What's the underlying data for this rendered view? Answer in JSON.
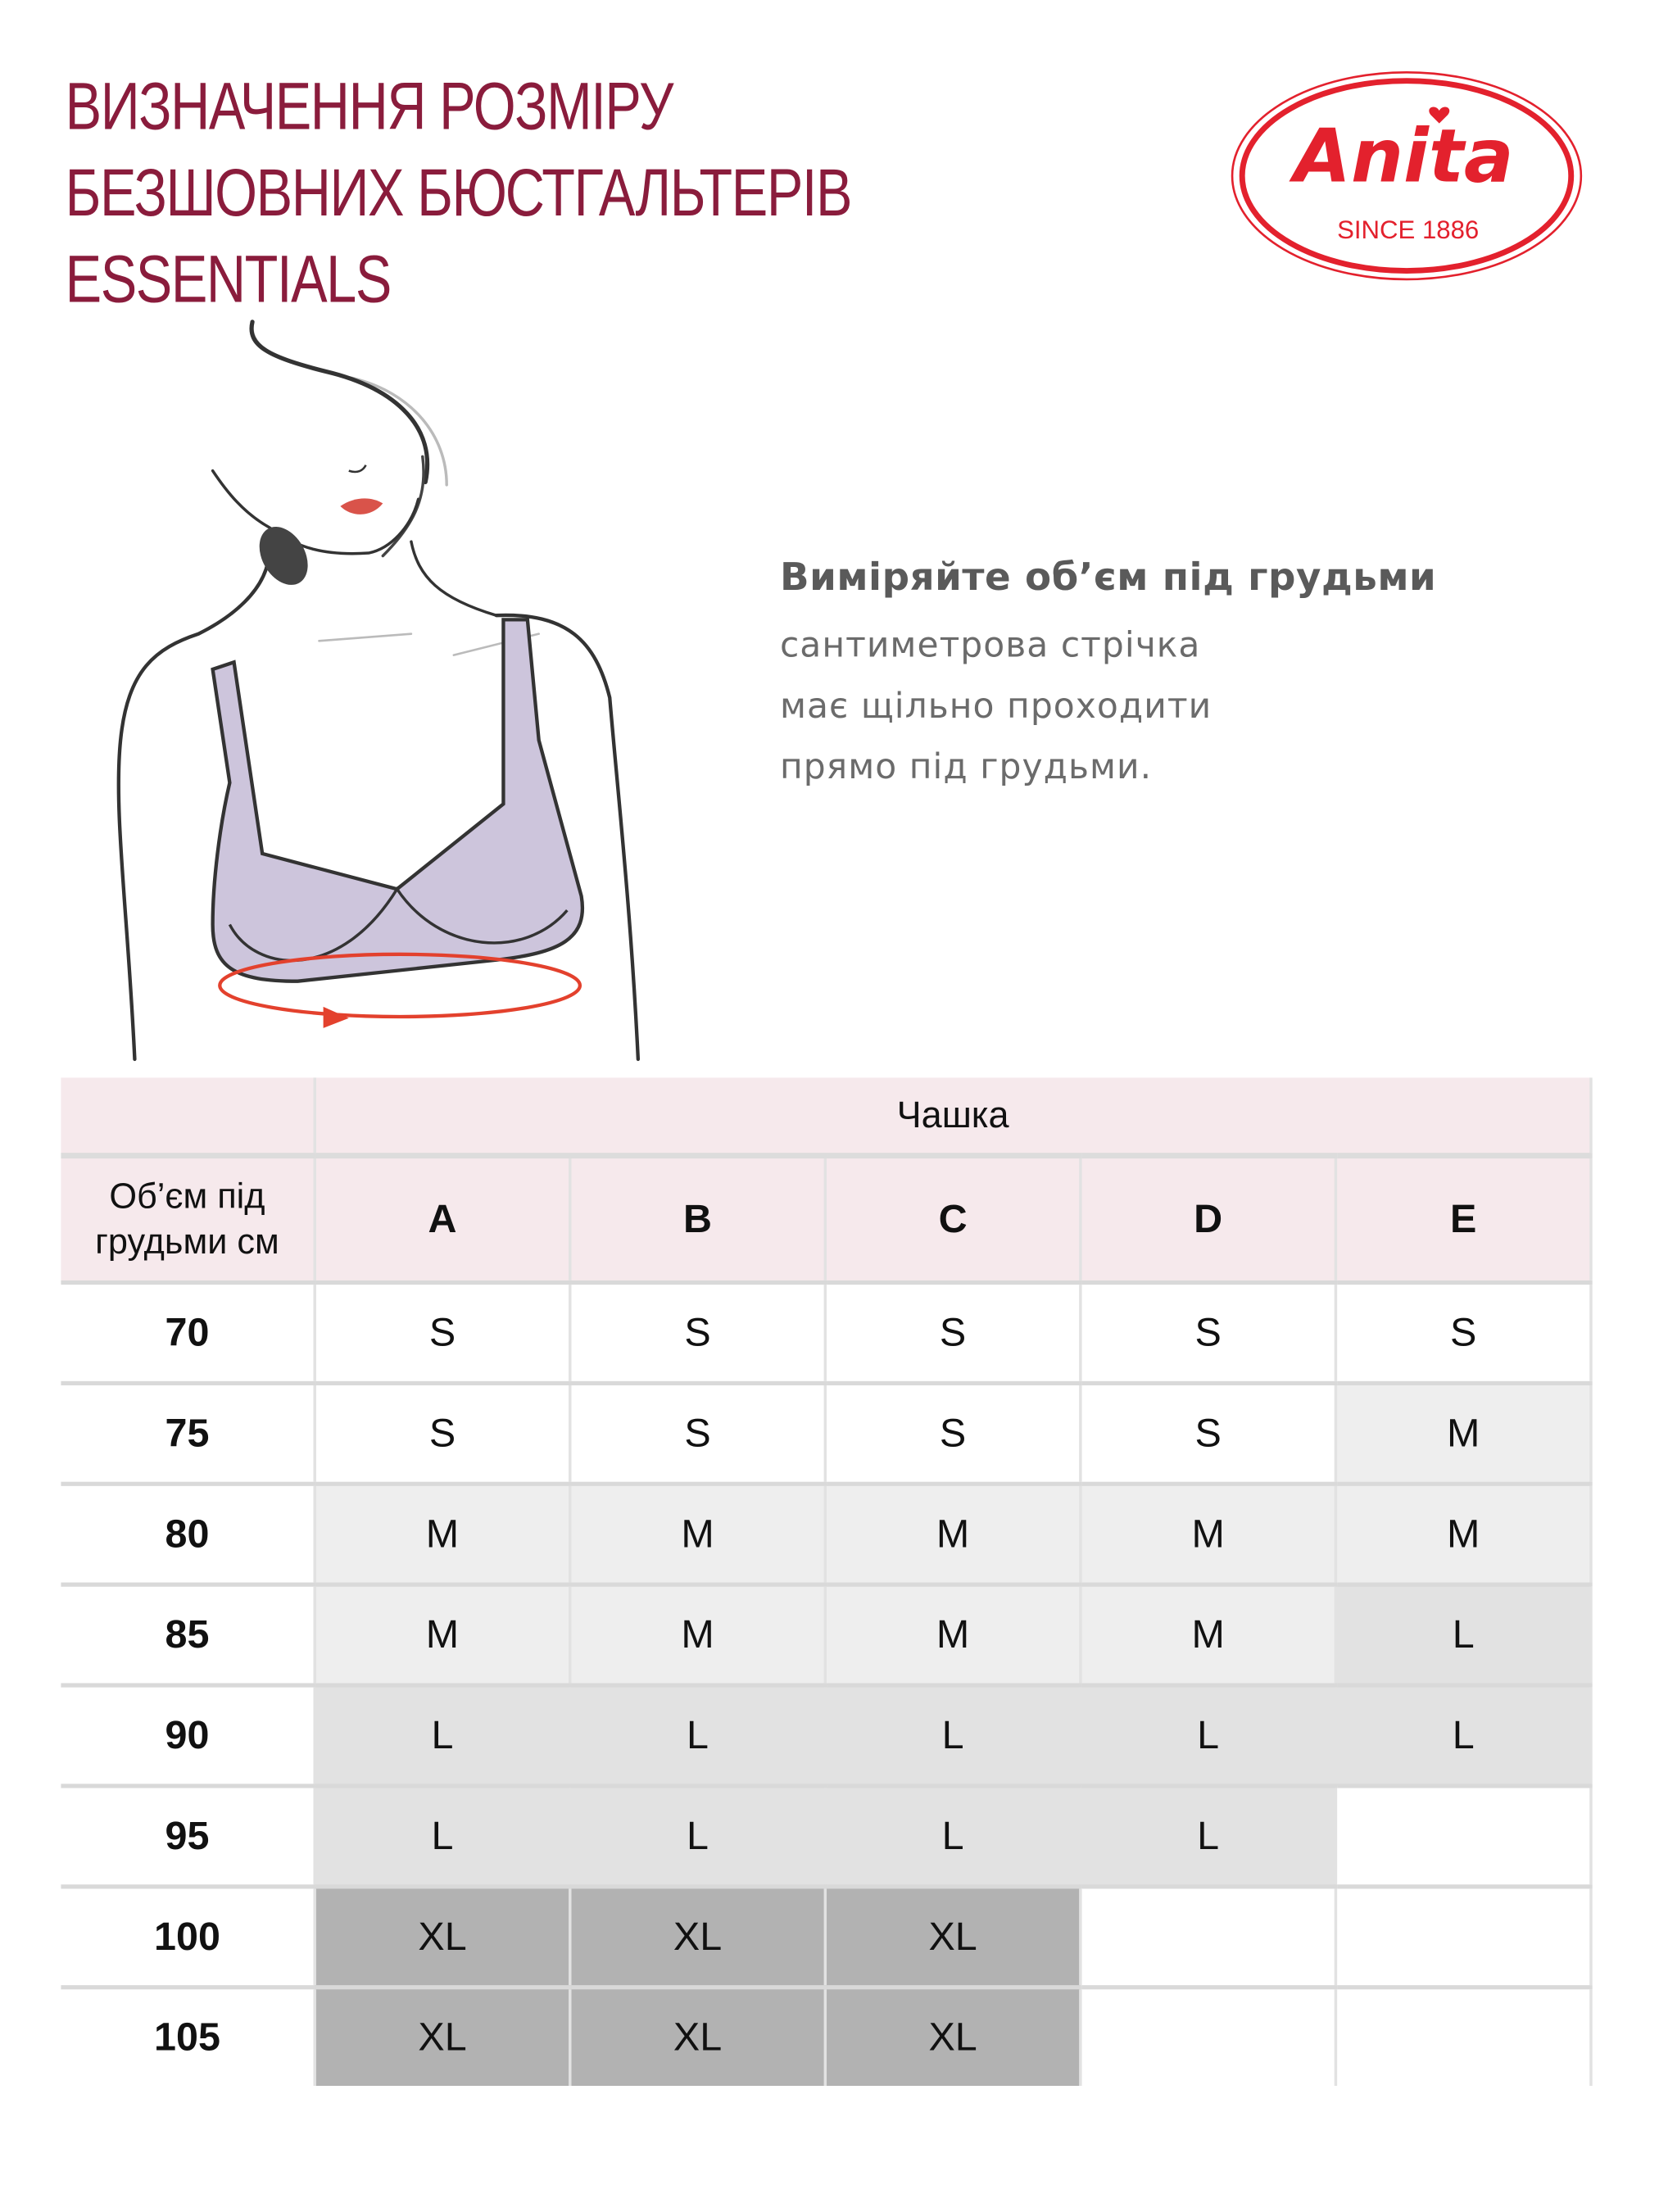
{
  "title": {
    "lines": [
      "ВИЗНАЧЕННЯ РОЗМІРУ",
      "БЕЗШОВНИХ БЮСТГАЛЬТЕРІВ",
      "ESSENTIALS"
    ],
    "color": "#8a1c3c"
  },
  "logo": {
    "brand": "Anita",
    "tagline": "SINCE 1886",
    "color": "#e3212d"
  },
  "instructions": {
    "heading": "Виміряйте об’єм під грудьми",
    "lines": [
      "сантиметрова стрічка",
      "має щільно проходити",
      "прямо під грудьми."
    ]
  },
  "illustration": {
    "subject": "bra-measurement-figure",
    "bra_color": "#cdc5dc",
    "tape_color": "#e3412d"
  },
  "table": {
    "group_header": "Чашка",
    "row_header": "Об’єм під грудьми см",
    "cups": [
      "A",
      "B",
      "C",
      "D",
      "E"
    ],
    "rows": [
      {
        "band": "70",
        "sizes": [
          "S",
          "S",
          "S",
          "S",
          "S"
        ]
      },
      {
        "band": "75",
        "sizes": [
          "S",
          "S",
          "S",
          "S",
          "M"
        ]
      },
      {
        "band": "80",
        "sizes": [
          "M",
          "M",
          "M",
          "M",
          "M"
        ]
      },
      {
        "band": "85",
        "sizes": [
          "M",
          "M",
          "M",
          "M",
          "L"
        ]
      },
      {
        "band": "90",
        "sizes": [
          "L",
          "L",
          "L",
          "L",
          "L"
        ]
      },
      {
        "band": "95",
        "sizes": [
          "L",
          "L",
          "L",
          "L",
          ""
        ]
      },
      {
        "band": "100",
        "sizes": [
          "XL",
          "XL",
          "XL",
          "",
          ""
        ]
      },
      {
        "band": "105",
        "sizes": [
          "XL",
          "XL",
          "XL",
          "",
          ""
        ]
      }
    ],
    "size_colors": {
      "S": "#ffffff",
      "M": "#eeeeee",
      "L": "#e2e2e2",
      "XL": "#b2b2b2"
    },
    "header_color": "#f6e9ec"
  }
}
